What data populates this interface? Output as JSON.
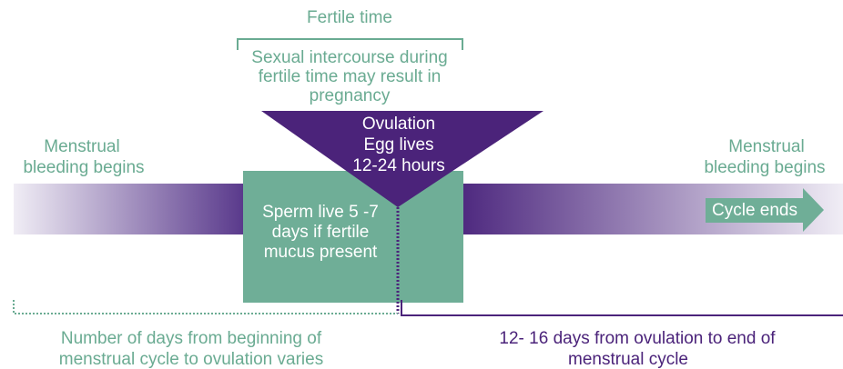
{
  "fertile_time": "Fertile time",
  "intercourse_note": [
    "Sexual intercourse during",
    "fertile time may result in",
    "pregnancy"
  ],
  "ovulation": [
    "Ovulation",
    "Egg lives",
    "12-24 hours"
  ],
  "menstrual_start": [
    "Menstrual",
    "bleeding begins"
  ],
  "menstrual_end": [
    "Menstrual",
    "bleeding begins"
  ],
  "sperm": [
    "Sperm live 5 -7",
    "days if fertile",
    "mucus present"
  ],
  "cycle_ends": "Cycle ends",
  "before_ovulation": [
    "Number of days from beginning of",
    "menstrual cycle to ovulation varies"
  ],
  "after_ovulation": [
    "12- 16 days from ovulation to end of",
    "menstrual cycle"
  ]
}
